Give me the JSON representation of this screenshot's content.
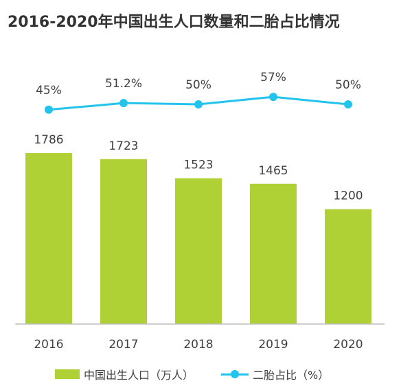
{
  "title": "2016-2020年中国出生人口数量和二胎占比情况",
  "colors": {
    "bar": "#b0d135",
    "line": "#22c3ec",
    "axis": "#bfbfbf",
    "text": "#404040"
  },
  "legend": {
    "bar_label": "中国出生人口（万人）",
    "line_label": "二胎占比（%）"
  },
  "chart_data": {
    "type": "bar",
    "title": "2016-2020年中国出生人口数量和二胎占比情况",
    "categories": [
      "2016",
      "2017",
      "2018",
      "2019",
      "2020"
    ],
    "series": [
      {
        "name": "中国出生人口（万人）",
        "type": "bar",
        "values": [
          1786,
          1723,
          1523,
          1465,
          1200
        ],
        "labels": [
          "1786",
          "1723",
          "1523",
          "1465",
          "1200"
        ]
      },
      {
        "name": "二胎占比（%）",
        "type": "line",
        "values": [
          45,
          51.2,
          50,
          57,
          50
        ],
        "labels": [
          "45%",
          "51.2%",
          "50%",
          "57%",
          "50%"
        ]
      }
    ],
    "bar_ylim": [
      0,
      2000
    ],
    "line_ylim": [
      0,
      100
    ],
    "grid": false,
    "legend_position": "bottom"
  }
}
